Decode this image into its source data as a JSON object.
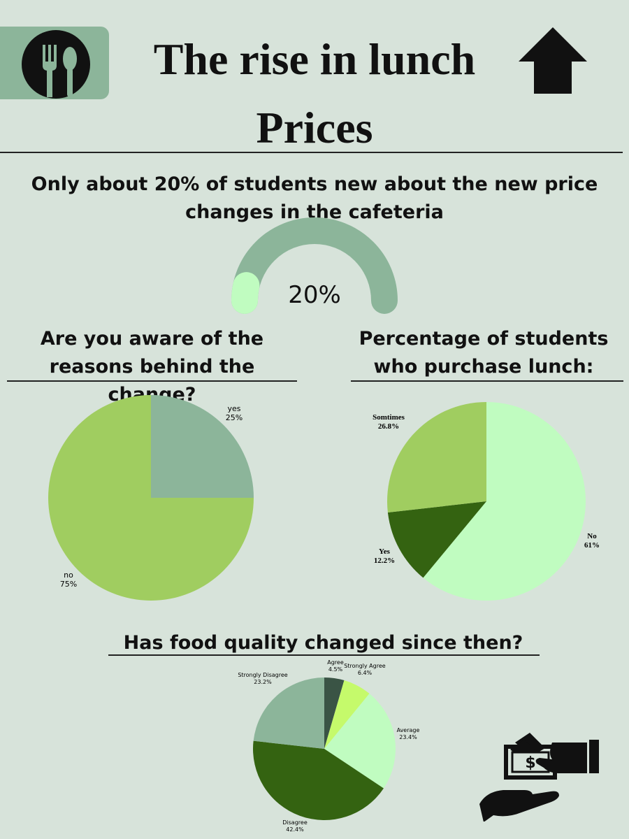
{
  "header": {
    "title_line1": "The rise in lunch",
    "title_line2": "Prices",
    "logo_icon": "fork-spoon-icon",
    "arrow_icon": "up-arrow-icon"
  },
  "subtitle": "Only about 20% of students new about the new price changes in the cafeteria",
  "gauge": {
    "value": 20,
    "label": "20%"
  },
  "colors": {
    "background": "#d7e3da",
    "sage": "#8cb59a",
    "lime": "#a0cd60",
    "mint": "#c0fcc0",
    "dark_green": "#346311",
    "deep_green": "#3a5445",
    "yellow_green": "#c5fa6b"
  },
  "chart_data": [
    {
      "type": "pie",
      "title": "Are you aware of the reasons behind the change?",
      "series": [
        {
          "values": [
            25,
            75
          ]
        }
      ],
      "categories": [
        "yes",
        "no"
      ],
      "value_labels": [
        "25%",
        "75%"
      ]
    },
    {
      "type": "pie",
      "title": "Percentage of students who purchase lunch:",
      "series": [
        {
          "values": [
            61,
            12.2,
            26.8
          ]
        }
      ],
      "categories": [
        "No",
        "Yes",
        "Somtimes"
      ],
      "value_labels": [
        "61%",
        "12.2%",
        "26.8%"
      ]
    },
    {
      "type": "pie",
      "title": "Has food quality changed since then?",
      "series": [
        {
          "values": [
            4.5,
            6.4,
            23.4,
            42.4,
            23.2
          ]
        }
      ],
      "categories": [
        "Agree",
        "Strongly Agree",
        "Average",
        "Disagree",
        "Strongly Disagree"
      ],
      "value_labels": [
        "4.5%",
        "6.4%",
        "23.4%",
        "42.4%",
        "23.2%"
      ]
    }
  ],
  "footer": {
    "icon": "money-hand-icon"
  }
}
